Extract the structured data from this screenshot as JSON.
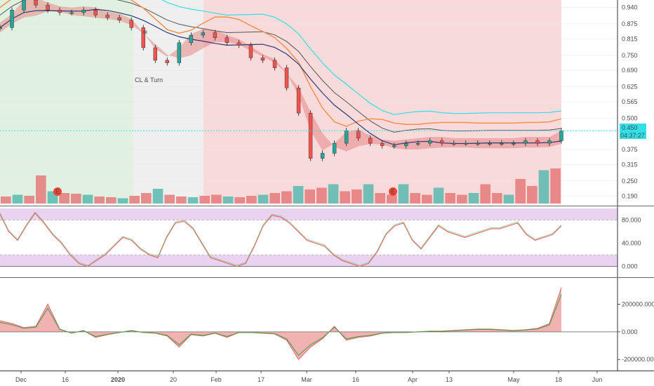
{
  "chart_data": [
    {
      "type": "candlestick",
      "panel": "price",
      "y_ticks": [
        "0.940",
        "0.875",
        "0.815",
        "0.750",
        "0.690",
        "0.625",
        "0.565",
        "0.500",
        "0.375",
        "0.315",
        "0.250",
        "0.190"
      ],
      "y_range": [
        0.16,
        0.97
      ],
      "current_price": "0.450",
      "countdown": "04:37:27",
      "annotation": "CL & Turn",
      "earnings_markers": [
        "E",
        "E"
      ],
      "price_points": [
        0.86,
        0.93,
        0.97,
        0.95,
        0.93,
        0.92,
        0.92,
        0.93,
        0.91,
        0.9,
        0.89,
        0.86,
        0.78,
        0.73,
        0.72,
        0.8,
        0.83,
        0.84,
        0.82,
        0.8,
        0.79,
        0.74,
        0.73,
        0.7,
        0.62,
        0.52,
        0.34,
        0.36,
        0.4,
        0.45,
        0.42,
        0.4,
        0.39,
        0.39,
        0.4,
        0.4,
        0.41,
        0.4,
        0.4,
        0.4,
        0.4,
        0.4,
        0.4,
        0.4,
        0.41,
        0.4,
        0.41,
        0.45
      ],
      "volume_points": [
        0.2,
        0.25,
        0.22,
        0.8,
        0.35,
        0.3,
        0.28,
        0.25,
        0.2,
        0.18,
        0.15,
        0.22,
        0.3,
        0.42,
        0.25,
        0.2,
        0.18,
        0.22,
        0.25,
        0.2,
        0.18,
        0.22,
        0.25,
        0.3,
        0.35,
        0.5,
        0.4,
        0.45,
        0.55,
        0.35,
        0.4,
        0.55,
        0.3,
        0.25,
        0.55,
        0.3,
        0.25,
        0.45,
        0.3,
        0.25,
        0.3,
        0.55,
        0.3,
        0.25,
        0.7,
        0.5,
        0.95,
        1.0
      ],
      "background_zones": [
        {
          "label": "bull-zone",
          "color": "#dcefdc"
        },
        {
          "label": "neutral-zone",
          "color": "#ececec"
        },
        {
          "label": "bear-zone",
          "color": "#f7d3d3"
        }
      ],
      "colors": {
        "up": "#26a69a",
        "down": "#ef5350",
        "cyan_ma": "#31e0e8",
        "dark_ma": "#555555",
        "orange_stop": "#f6904f",
        "navy_ma": "#2e3a78",
        "current_line": "#31e0e8"
      }
    },
    {
      "type": "line",
      "panel": "oscillator",
      "y_ticks": [
        "80.000",
        "40.000",
        "0.000"
      ],
      "y_range": [
        -15,
        100
      ],
      "bands": {
        "upper": [
          80,
          100
        ],
        "lower": [
          0,
          20
        ]
      },
      "values": [
        90,
        60,
        45,
        70,
        92,
        75,
        55,
        40,
        20,
        5,
        0,
        10,
        20,
        35,
        50,
        45,
        30,
        20,
        15,
        50,
        75,
        78,
        65,
        40,
        15,
        10,
        5,
        0,
        5,
        35,
        70,
        88,
        85,
        75,
        60,
        45,
        40,
        35,
        20,
        10,
        5,
        0,
        5,
        25,
        55,
        70,
        75,
        45,
        30,
        50,
        70,
        60,
        55,
        50,
        55,
        60,
        65,
        65,
        70,
        75,
        55,
        45,
        50,
        55,
        70
      ]
    },
    {
      "type": "area",
      "panel": "volume-flow",
      "y_ticks": [
        "200000.000",
        "0.000",
        "-200000.000"
      ],
      "y_range": [
        -280000,
        380000
      ],
      "values": [
        80000,
        60000,
        30000,
        40000,
        200000,
        20000,
        -10000,
        10000,
        -40000,
        -20000,
        -5000,
        10000,
        -5000,
        -10000,
        -30000,
        -110000,
        -20000,
        -30000,
        -10000,
        -40000,
        -5000,
        -5000,
        -10000,
        -15000,
        -60000,
        -200000,
        -110000,
        -50000,
        40000,
        -60000,
        -40000,
        -30000,
        -10000,
        -5000,
        -5000,
        0,
        5000,
        5000,
        10000,
        15000,
        20000,
        20000,
        15000,
        10000,
        15000,
        25000,
        60000,
        320000
      ]
    },
    {
      "type": "axis",
      "panel": "time-axis",
      "x_ticks": [
        "Dec",
        "16",
        "2020",
        "20",
        "Feb",
        "17",
        "Mar",
        "16",
        "Apr",
        "13",
        "May",
        "18",
        "Jun"
      ]
    }
  ]
}
